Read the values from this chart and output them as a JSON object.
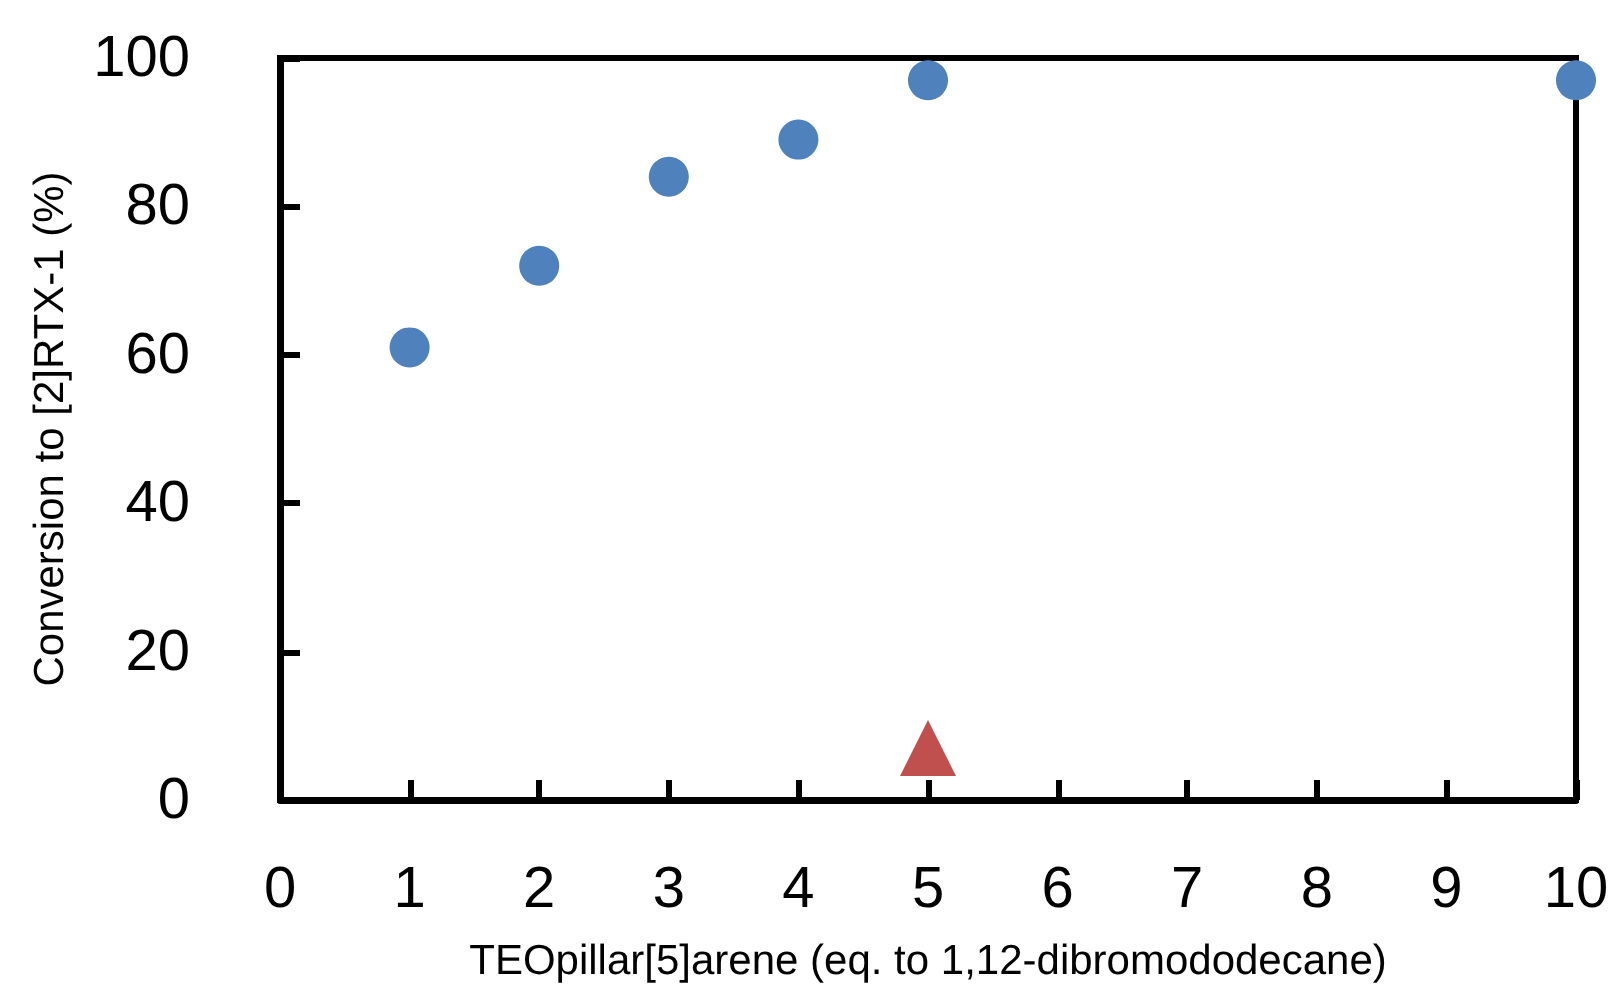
{
  "chart_data": {
    "type": "scatter",
    "xlabel": "TEOpillar[5]arene (eq. to 1,12-dibromododecane)",
    "ylabel": "Conversion to [2]RTX-1 (%)",
    "xlim": [
      0,
      10
    ],
    "xticks": [
      0,
      1,
      2,
      3,
      4,
      5,
      6,
      7,
      8,
      9,
      10
    ],
    "ylim": [
      0,
      100
    ],
    "yticks": [
      0,
      20,
      40,
      60,
      80,
      100
    ],
    "series": [
      {
        "color": "#4f81bd",
        "marker": "circle",
        "x": [
          1,
          2,
          3,
          4,
          5,
          10
        ],
        "values": [
          61,
          72,
          84,
          89,
          97,
          97
        ]
      },
      {
        "color": "#c0504d",
        "marker": "triangle",
        "x": [
          5
        ],
        "values": [
          7
        ]
      }
    ]
  }
}
